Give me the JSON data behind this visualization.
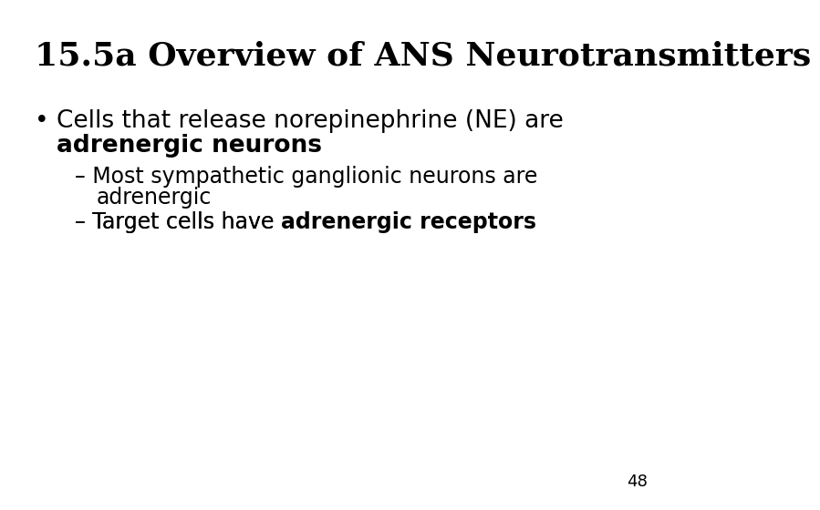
{
  "title": "15.5a Overview of ANS Neurotransmitters",
  "background_color": "#ffffff",
  "text_color": "#000000",
  "title_fontsize": 26,
  "title_fontweight": "bold",
  "title_font": "DejaVu Serif",
  "body_font": "DejaVu Sans",
  "bullet_symbol": "•",
  "dash_symbol": "–",
  "line1_normal": "Cells that release norepinephrine (NE) are",
  "line1_bold": "adrenergic neurons",
  "sub1_text": "Most sympathetic ganglionic neurons are",
  "sub1_cont": "adrenergic",
  "sub2_normal": "Target cells have ",
  "sub2_bold": "adrenergic receptors",
  "page_number": "48",
  "bullet_fontsize": 19,
  "sub_fontsize": 17,
  "page_fontsize": 13
}
